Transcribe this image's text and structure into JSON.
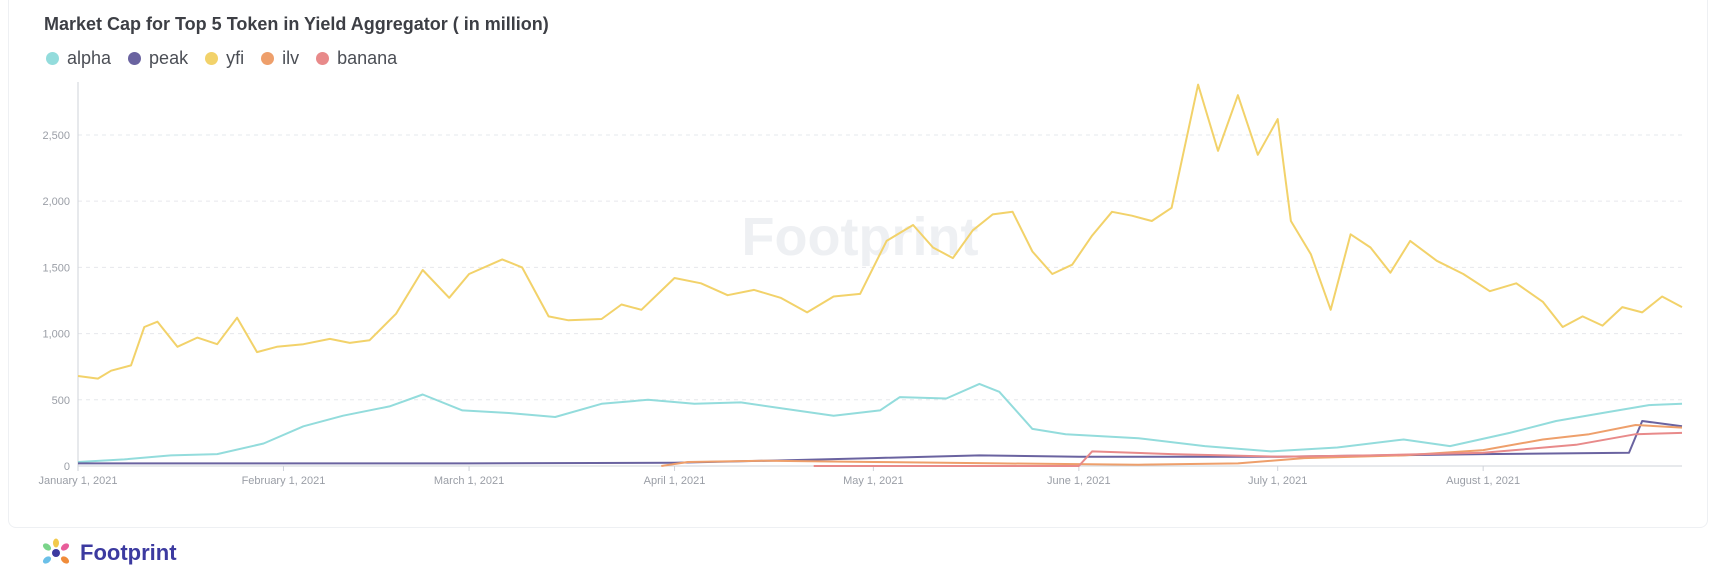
{
  "chart_data": {
    "type": "line",
    "title": "Market Cap for Top 5 Token in Yield Aggregator ( in million)",
    "xlabel": "",
    "ylabel": "",
    "ylim": [
      0,
      2900
    ],
    "yticks": [
      0,
      500,
      1000,
      1500,
      2000,
      2500
    ],
    "ytick_labels": [
      "0",
      "500",
      "1,000",
      "1,500",
      "2,000",
      "2,500"
    ],
    "xlim": [
      "2021-01-01",
      "2021-08-31"
    ],
    "xticks": [
      "2021-01-01",
      "2021-02-01",
      "2021-03-01",
      "2021-04-01",
      "2021-05-01",
      "2021-06-01",
      "2021-07-01",
      "2021-08-01"
    ],
    "xtick_labels": [
      "January 1, 2021",
      "February 1, 2021",
      "March 1, 2021",
      "April 1, 2021",
      "May 1, 2021",
      "June 1, 2021",
      "July 1, 2021",
      "August 1, 2021"
    ],
    "grid": true,
    "legend_position": "top-left",
    "series": [
      {
        "name": "alpha",
        "color": "#93dcdc",
        "points": [
          [
            "2021-01-01",
            30
          ],
          [
            "2021-01-08",
            50
          ],
          [
            "2021-01-15",
            80
          ],
          [
            "2021-01-22",
            90
          ],
          [
            "2021-01-29",
            170
          ],
          [
            "2021-02-04",
            300
          ],
          [
            "2021-02-10",
            380
          ],
          [
            "2021-02-17",
            450
          ],
          [
            "2021-02-22",
            540
          ],
          [
            "2021-02-28",
            420
          ],
          [
            "2021-03-07",
            400
          ],
          [
            "2021-03-14",
            370
          ],
          [
            "2021-03-21",
            470
          ],
          [
            "2021-03-28",
            500
          ],
          [
            "2021-04-04",
            470
          ],
          [
            "2021-04-11",
            480
          ],
          [
            "2021-04-18",
            430
          ],
          [
            "2021-04-25",
            380
          ],
          [
            "2021-05-02",
            420
          ],
          [
            "2021-05-05",
            520
          ],
          [
            "2021-05-12",
            510
          ],
          [
            "2021-05-17",
            620
          ],
          [
            "2021-05-20",
            560
          ],
          [
            "2021-05-25",
            280
          ],
          [
            "2021-05-30",
            240
          ],
          [
            "2021-06-10",
            210
          ],
          [
            "2021-06-20",
            150
          ],
          [
            "2021-06-30",
            110
          ],
          [
            "2021-07-10",
            140
          ],
          [
            "2021-07-20",
            200
          ],
          [
            "2021-07-27",
            150
          ],
          [
            "2021-08-05",
            250
          ],
          [
            "2021-08-12",
            340
          ],
          [
            "2021-08-19",
            400
          ],
          [
            "2021-08-26",
            460
          ],
          [
            "2021-08-31",
            470
          ]
        ]
      },
      {
        "name": "peak",
        "color": "#6a63a0",
        "points": [
          [
            "2021-01-01",
            20
          ],
          [
            "2021-02-01",
            20
          ],
          [
            "2021-03-01",
            20
          ],
          [
            "2021-04-01",
            25
          ],
          [
            "2021-04-15",
            40
          ],
          [
            "2021-05-01",
            60
          ],
          [
            "2021-05-17",
            80
          ],
          [
            "2021-06-01",
            70
          ],
          [
            "2021-07-01",
            70
          ],
          [
            "2021-08-01",
            90
          ],
          [
            "2021-08-23",
            100
          ],
          [
            "2021-08-25",
            340
          ],
          [
            "2021-08-31",
            300
          ]
        ]
      },
      {
        "name": "yfi",
        "color": "#f2d26a",
        "points": [
          [
            "2021-01-01",
            680
          ],
          [
            "2021-01-04",
            660
          ],
          [
            "2021-01-06",
            720
          ],
          [
            "2021-01-09",
            760
          ],
          [
            "2021-01-11",
            1050
          ],
          [
            "2021-01-13",
            1090
          ],
          [
            "2021-01-16",
            900
          ],
          [
            "2021-01-19",
            970
          ],
          [
            "2021-01-22",
            920
          ],
          [
            "2021-01-25",
            1120
          ],
          [
            "2021-01-28",
            860
          ],
          [
            "2021-01-31",
            900
          ],
          [
            "2021-02-04",
            920
          ],
          [
            "2021-02-08",
            960
          ],
          [
            "2021-02-11",
            930
          ],
          [
            "2021-02-14",
            950
          ],
          [
            "2021-02-18",
            1150
          ],
          [
            "2021-02-22",
            1480
          ],
          [
            "2021-02-26",
            1270
          ],
          [
            "2021-03-01",
            1450
          ],
          [
            "2021-03-06",
            1560
          ],
          [
            "2021-03-09",
            1500
          ],
          [
            "2021-03-13",
            1130
          ],
          [
            "2021-03-16",
            1100
          ],
          [
            "2021-03-21",
            1110
          ],
          [
            "2021-03-24",
            1220
          ],
          [
            "2021-03-27",
            1180
          ],
          [
            "2021-04-01",
            1420
          ],
          [
            "2021-04-05",
            1380
          ],
          [
            "2021-04-09",
            1290
          ],
          [
            "2021-04-13",
            1330
          ],
          [
            "2021-04-17",
            1270
          ],
          [
            "2021-04-21",
            1160
          ],
          [
            "2021-04-25",
            1280
          ],
          [
            "2021-04-29",
            1300
          ],
          [
            "2021-05-03",
            1700
          ],
          [
            "2021-05-07",
            1820
          ],
          [
            "2021-05-10",
            1650
          ],
          [
            "2021-05-13",
            1570
          ],
          [
            "2021-05-16",
            1780
          ],
          [
            "2021-05-19",
            1900
          ],
          [
            "2021-05-22",
            1920
          ],
          [
            "2021-05-25",
            1620
          ],
          [
            "2021-05-28",
            1450
          ],
          [
            "2021-05-31",
            1520
          ],
          [
            "2021-06-03",
            1740
          ],
          [
            "2021-06-06",
            1920
          ],
          [
            "2021-06-09",
            1890
          ],
          [
            "2021-06-12",
            1850
          ],
          [
            "2021-06-15",
            1950
          ],
          [
            "2021-06-19",
            2880
          ],
          [
            "2021-06-22",
            2380
          ],
          [
            "2021-06-25",
            2800
          ],
          [
            "2021-06-28",
            2350
          ],
          [
            "2021-07-01",
            2620
          ],
          [
            "2021-07-03",
            1850
          ],
          [
            "2021-07-06",
            1600
          ],
          [
            "2021-07-09",
            1180
          ],
          [
            "2021-07-12",
            1750
          ],
          [
            "2021-07-15",
            1650
          ],
          [
            "2021-07-18",
            1460
          ],
          [
            "2021-07-21",
            1700
          ],
          [
            "2021-07-25",
            1550
          ],
          [
            "2021-07-29",
            1450
          ],
          [
            "2021-08-02",
            1320
          ],
          [
            "2021-08-06",
            1380
          ],
          [
            "2021-08-10",
            1240
          ],
          [
            "2021-08-13",
            1050
          ],
          [
            "2021-08-16",
            1130
          ],
          [
            "2021-08-19",
            1060
          ],
          [
            "2021-08-22",
            1200
          ],
          [
            "2021-08-25",
            1160
          ],
          [
            "2021-08-28",
            1280
          ],
          [
            "2021-08-31",
            1200
          ]
        ]
      },
      {
        "name": "ilv",
        "color": "#ee9f6b",
        "points": [
          [
            "2021-03-30",
            0
          ],
          [
            "2021-04-03",
            30
          ],
          [
            "2021-04-15",
            40
          ],
          [
            "2021-05-01",
            30
          ],
          [
            "2021-05-20",
            20
          ],
          [
            "2021-06-10",
            10
          ],
          [
            "2021-06-25",
            20
          ],
          [
            "2021-07-05",
            60
          ],
          [
            "2021-07-20",
            80
          ],
          [
            "2021-08-01",
            120
          ],
          [
            "2021-08-10",
            200
          ],
          [
            "2021-08-17",
            240
          ],
          [
            "2021-08-24",
            310
          ],
          [
            "2021-08-31",
            290
          ]
        ]
      },
      {
        "name": "banana",
        "color": "#e88a8a",
        "points": [
          [
            "2021-04-22",
            0
          ],
          [
            "2021-05-01",
            0
          ],
          [
            "2021-06-01",
            0
          ],
          [
            "2021-06-03",
            110
          ],
          [
            "2021-06-15",
            90
          ],
          [
            "2021-07-01",
            70
          ],
          [
            "2021-07-15",
            80
          ],
          [
            "2021-08-01",
            100
          ],
          [
            "2021-08-15",
            160
          ],
          [
            "2021-08-24",
            240
          ],
          [
            "2021-08-31",
            250
          ]
        ]
      }
    ]
  },
  "footer": {
    "logo_text": "Footprint"
  },
  "watermark": {
    "text": "Footprint"
  }
}
